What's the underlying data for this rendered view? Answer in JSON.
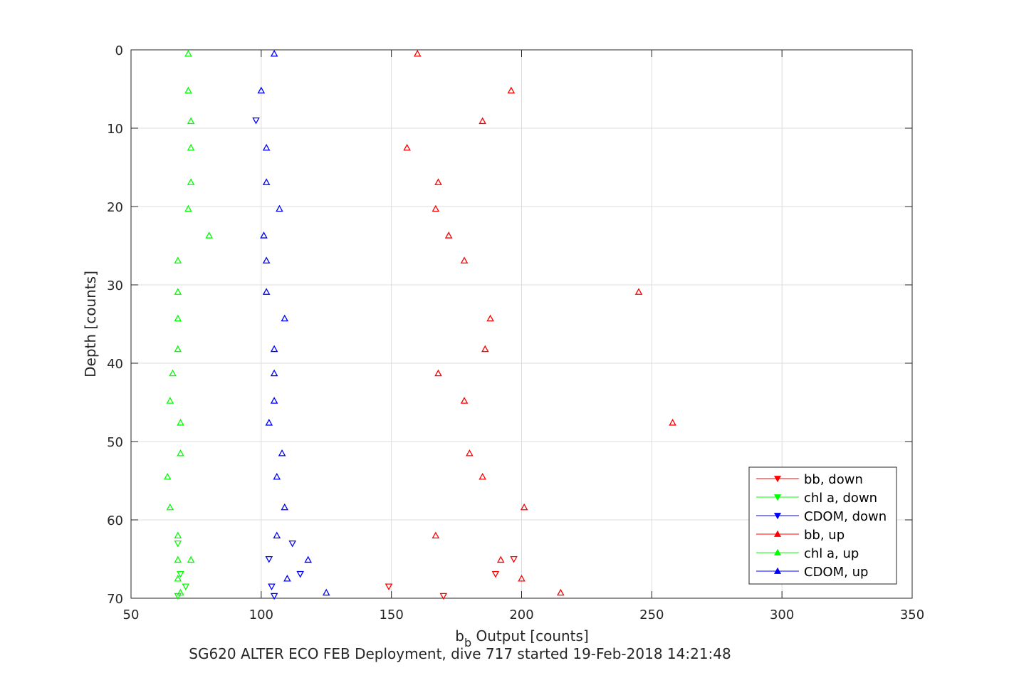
{
  "chart_data": {
    "type": "scatter",
    "xlabel_main": "b",
    "xlabel_sub": "b",
    "xlabel_rest": " Output [counts]",
    "ylabel": "Depth [counts]",
    "caption": "SG620 ALTER ECO FEB Deployment, dive 717 started 19-Feb-2018 14:21:48",
    "xlim": [
      50,
      350
    ],
    "ylim": [
      0,
      70
    ],
    "y_reversed": true,
    "xticks": [
      50,
      100,
      150,
      200,
      250,
      300,
      350
    ],
    "yticks": [
      0,
      10,
      20,
      30,
      40,
      50,
      60,
      70
    ],
    "grid": true,
    "legend_position": "bottom-right",
    "series": [
      {
        "name": "bb, down",
        "color": "#ff0000",
        "marker": "triangle-down",
        "points": [
          [
            149,
            68.5
          ],
          [
            170,
            69.7
          ],
          [
            190,
            66.9
          ],
          [
            197,
            65.0
          ]
        ]
      },
      {
        "name": "chl a, down",
        "color": "#00ff00",
        "marker": "triangle-down",
        "points": [
          [
            68,
            63.0
          ],
          [
            69,
            66.9
          ],
          [
            71,
            68.5
          ],
          [
            68,
            69.7
          ]
        ]
      },
      {
        "name": "CDOM, down",
        "color": "#0000ff",
        "marker": "triangle-down",
        "points": [
          [
            98,
            9.0
          ],
          [
            112,
            63.0
          ],
          [
            103,
            65.0
          ],
          [
            115,
            66.9
          ],
          [
            104,
            68.5
          ],
          [
            105,
            69.7
          ]
        ]
      },
      {
        "name": "bb, up",
        "color": "#ff0000",
        "marker": "triangle-up",
        "points": [
          [
            160,
            0.5
          ],
          [
            196,
            5.2
          ],
          [
            185,
            9.1
          ],
          [
            156,
            12.5
          ],
          [
            168,
            16.9
          ],
          [
            167,
            20.3
          ],
          [
            172,
            23.7
          ],
          [
            178,
            26.9
          ],
          [
            245,
            30.9
          ],
          [
            188,
            34.3
          ],
          [
            186,
            38.2
          ],
          [
            168,
            41.3
          ],
          [
            178,
            44.8
          ],
          [
            258,
            47.6
          ],
          [
            180,
            51.5
          ],
          [
            185,
            54.5
          ],
          [
            201,
            58.4
          ],
          [
            167,
            62.0
          ],
          [
            192,
            65.1
          ],
          [
            200,
            67.5
          ],
          [
            215,
            69.3
          ]
        ]
      },
      {
        "name": "chl a, up",
        "color": "#00ff00",
        "marker": "triangle-up",
        "points": [
          [
            72,
            0.5
          ],
          [
            72,
            5.2
          ],
          [
            73,
            9.1
          ],
          [
            73,
            12.5
          ],
          [
            73,
            16.9
          ],
          [
            72,
            20.3
          ],
          [
            80,
            23.7
          ],
          [
            68,
            26.9
          ],
          [
            68,
            30.9
          ],
          [
            68,
            34.3
          ],
          [
            68,
            38.2
          ],
          [
            66,
            41.3
          ],
          [
            65,
            44.8
          ],
          [
            69,
            47.6
          ],
          [
            69,
            51.5
          ],
          [
            64,
            54.5
          ],
          [
            65,
            58.4
          ],
          [
            68,
            62.0
          ],
          [
            68,
            65.1
          ],
          [
            73,
            65.1
          ],
          [
            68,
            67.5
          ],
          [
            69,
            69.3
          ]
        ]
      },
      {
        "name": "CDOM, up",
        "color": "#0000ff",
        "marker": "triangle-up",
        "points": [
          [
            105,
            0.5
          ],
          [
            100,
            5.2
          ],
          [
            102,
            12.5
          ],
          [
            102,
            16.9
          ],
          [
            107,
            20.3
          ],
          [
            101,
            23.7
          ],
          [
            102,
            26.9
          ],
          [
            102,
            30.9
          ],
          [
            109,
            34.3
          ],
          [
            105,
            38.2
          ],
          [
            105,
            41.3
          ],
          [
            105,
            44.8
          ],
          [
            103,
            47.6
          ],
          [
            108,
            51.5
          ],
          [
            106,
            54.5
          ],
          [
            109,
            58.4
          ],
          [
            106,
            62.0
          ],
          [
            118,
            65.1
          ],
          [
            110,
            67.5
          ],
          [
            125,
            69.3
          ]
        ]
      }
    ]
  }
}
